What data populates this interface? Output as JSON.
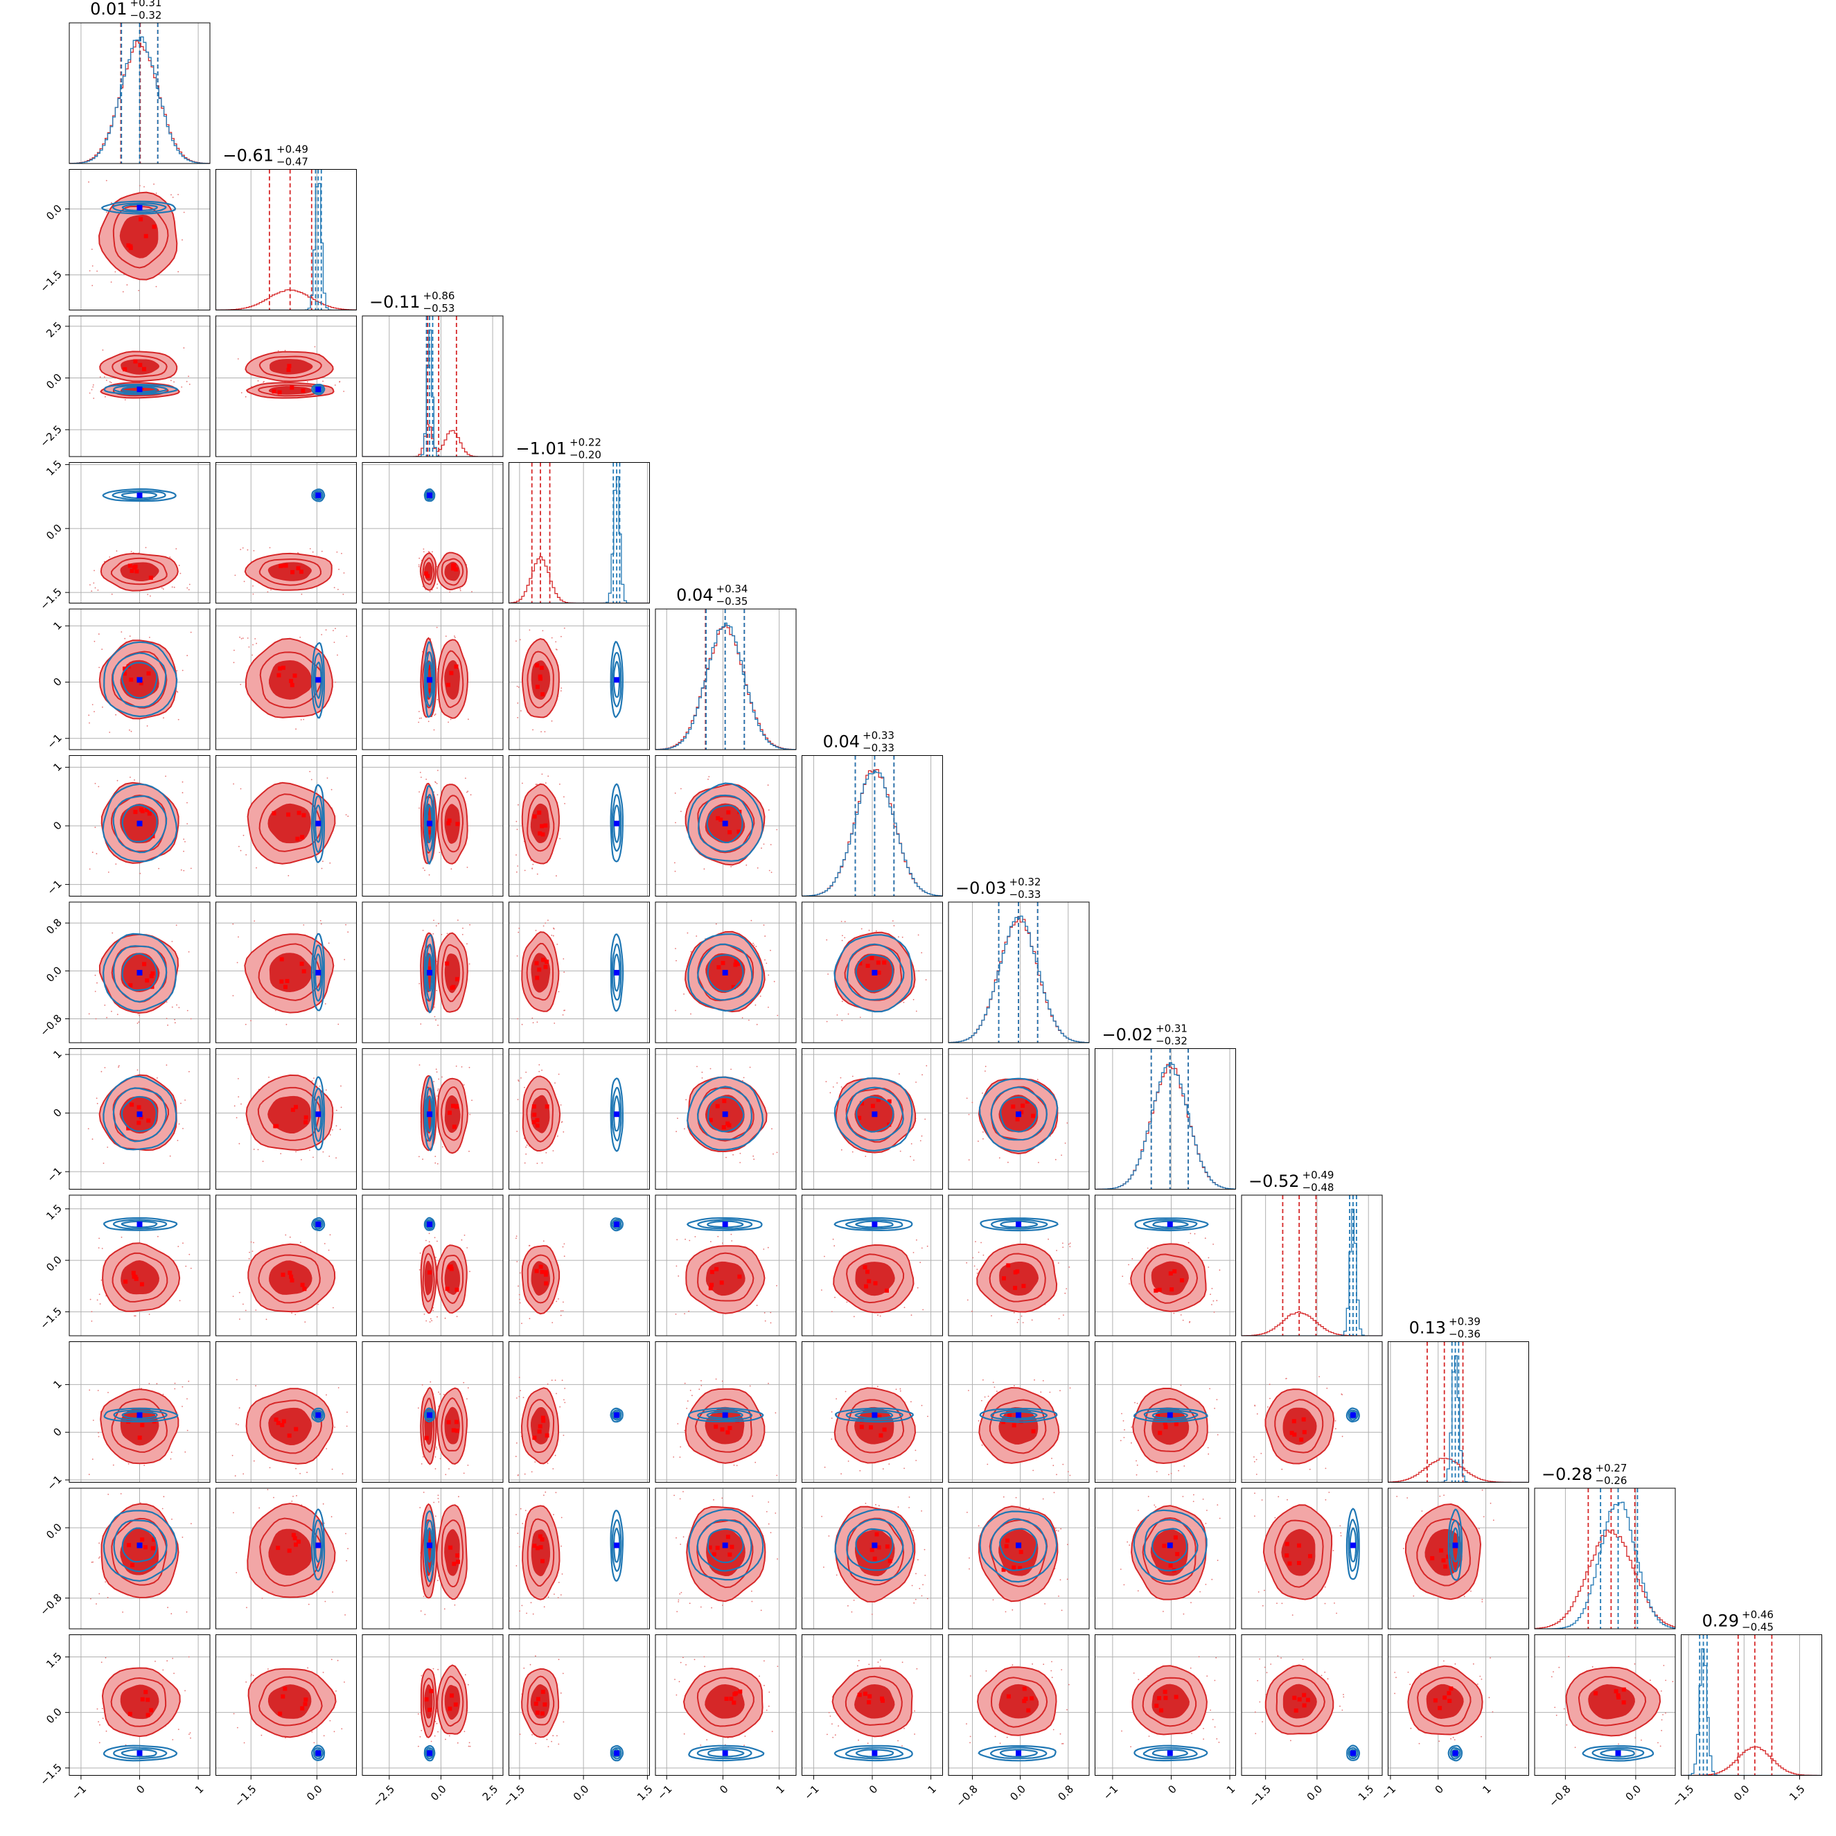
{
  "chart_data": {
    "type": "corner",
    "n_params": 12,
    "grid": true,
    "colors": {
      "red": "#d62728",
      "red_light": "#f2a6a6",
      "red_mid": "#e88b8b",
      "blue": "#1f77b4",
      "marker_blue": "#0000ff",
      "marker_red": "#ff0000"
    },
    "params": [
      {
        "title_median": "0.01",
        "title_plus": "+0.31",
        "title_minus": "−0.32",
        "range": [
          -1.2,
          1.2
        ],
        "ticks": [
          -1,
          0,
          1
        ],
        "tick_labels": [
          "−1",
          "0",
          "1"
        ],
        "red": {
          "modes": [
            [
              0.0,
              0.32,
              1
            ]
          ]
        },
        "blue": {
          "modes": [
            [
              0.0,
              0.31,
              1
            ]
          ]
        },
        "red_q": [
          -0.32,
          0.01,
          0.31
        ],
        "blue_q": [
          -0.31,
          0.0,
          0.31
        ]
      },
      {
        "title_median": "−0.61",
        "title_plus": "+0.49",
        "title_minus": "−0.47",
        "range": [
          -2.3,
          0.9
        ],
        "ticks": [
          -1.5,
          0.0
        ],
        "tick_labels": [
          "−1.5",
          "0.0"
        ],
        "red": {
          "modes": [
            [
              -0.61,
              0.48,
              1
            ]
          ]
        },
        "blue": {
          "modes": [
            [
              0.03,
              0.07,
              1
            ]
          ]
        },
        "red_q": [
          -1.08,
          -0.61,
          -0.12
        ],
        "blue_q": [
          -0.03,
          0.03,
          0.1
        ]
      },
      {
        "title_median": "−0.11",
        "title_plus": "+0.86",
        "title_minus": "−0.53",
        "range": [
          -3.8,
          3.0
        ],
        "ticks": [
          -2.5,
          0.0,
          2.5
        ],
        "tick_labels": [
          "−2.5",
          "0.0",
          "2.5"
        ],
        "red": {
          "modes": [
            [
              -0.6,
              0.18,
              0.55
            ],
            [
              0.55,
              0.35,
              0.45
            ]
          ]
        },
        "blue": {
          "modes": [
            [
              -0.55,
              0.12,
              1
            ]
          ]
        },
        "red_q": [
          -0.64,
          -0.11,
          0.75
        ],
        "blue_q": [
          -0.7,
          -0.55,
          -0.4
        ]
      },
      {
        "title_median": "−1.01",
        "title_plus": "+0.22",
        "title_minus": "−0.20",
        "range": [
          -1.75,
          1.55
        ],
        "ticks": [
          -1.5,
          0.0,
          1.5
        ],
        "tick_labels": [
          "−1.5",
          "0.0",
          "1.5"
        ],
        "red": {
          "modes": [
            [
              -1.01,
              0.21,
              1
            ]
          ]
        },
        "blue": {
          "modes": [
            [
              0.78,
              0.07,
              1
            ]
          ]
        },
        "red_q": [
          -1.21,
          -1.01,
          -0.79
        ],
        "blue_q": [
          0.7,
          0.78,
          0.85
        ]
      },
      {
        "title_median": "0.04",
        "title_plus": "+0.34",
        "title_minus": "−0.35",
        "range": [
          -1.2,
          1.3
        ],
        "ticks": [
          -1,
          0,
          1
        ],
        "tick_labels": [
          "−1",
          "0",
          "1"
        ],
        "red": {
          "modes": [
            [
              0.04,
              0.34,
              1
            ]
          ]
        },
        "blue": {
          "modes": [
            [
              0.04,
              0.33,
              1
            ]
          ]
        },
        "red_q": [
          -0.31,
          0.04,
          0.38
        ],
        "blue_q": [
          -0.3,
          0.04,
          0.38
        ]
      },
      {
        "title_median": "0.04",
        "title_plus": "+0.33",
        "title_minus": "−0.33",
        "range": [
          -1.2,
          1.2
        ],
        "ticks": [
          -1,
          0,
          1
        ],
        "tick_labels": [
          "−1",
          "0",
          "1"
        ],
        "red": {
          "modes": [
            [
              0.04,
              0.33,
              1
            ]
          ]
        },
        "blue": {
          "modes": [
            [
              0.04,
              0.33,
              1
            ]
          ]
        },
        "red_q": [
          -0.29,
          0.04,
          0.37
        ],
        "blue_q": [
          -0.29,
          0.04,
          0.37
        ]
      },
      {
        "title_median": "−0.03",
        "title_plus": "+0.32",
        "title_minus": "−0.33",
        "range": [
          -1.2,
          1.15
        ],
        "ticks": [
          -0.8,
          0.0,
          0.8
        ],
        "tick_labels": [
          "−0.8",
          "0.0",
          "0.8"
        ],
        "red": {
          "modes": [
            [
              -0.03,
              0.32,
              1
            ]
          ]
        },
        "blue": {
          "modes": [
            [
              -0.03,
              0.32,
              1
            ]
          ]
        },
        "red_q": [
          -0.36,
          -0.03,
          0.29
        ],
        "blue_q": [
          -0.36,
          -0.03,
          0.29
        ]
      },
      {
        "title_median": "−0.02",
        "title_plus": "+0.31",
        "title_minus": "−0.32",
        "range": [
          -1.3,
          1.1
        ],
        "ticks": [
          -1,
          0,
          1
        ],
        "tick_labels": [
          "−1",
          "0",
          "1"
        ],
        "red": {
          "modes": [
            [
              -0.02,
              0.31,
              1
            ]
          ]
        },
        "blue": {
          "modes": [
            [
              -0.02,
              0.31,
              1
            ]
          ]
        },
        "red_q": [
          -0.34,
          -0.02,
          0.29
        ],
        "blue_q": [
          -0.34,
          -0.02,
          0.29
        ]
      },
      {
        "title_median": "−0.52",
        "title_plus": "+0.49",
        "title_minus": "−0.48",
        "range": [
          -2.2,
          1.9
        ],
        "ticks": [
          -1.5,
          0.0,
          1.5
        ],
        "tick_labels": [
          "−1.5",
          "0.0",
          "1.5"
        ],
        "red": {
          "modes": [
            [
              -0.52,
              0.48,
              1
            ]
          ]
        },
        "blue": {
          "modes": [
            [
              1.05,
              0.09,
              1
            ]
          ]
        },
        "red_q": [
          -1.0,
          -0.52,
          -0.03
        ],
        "blue_q": [
          0.95,
          1.05,
          1.15
        ]
      },
      {
        "title_median": "0.13",
        "title_plus": "+0.39",
        "title_minus": "−0.36",
        "range": [
          -1.05,
          1.9
        ],
        "ticks": [
          -1,
          0,
          1
        ],
        "tick_labels": [
          "−1",
          "0",
          "1"
        ],
        "red": {
          "modes": [
            [
              0.13,
              0.38,
              1
            ]
          ]
        },
        "blue": {
          "modes": [
            [
              0.36,
              0.07,
              1
            ]
          ]
        },
        "red_q": [
          -0.23,
          0.13,
          0.52
        ],
        "blue_q": [
          0.29,
          0.36,
          0.43
        ]
      },
      {
        "title_median": "−0.28",
        "title_plus": "+0.27",
        "title_minus": "−0.26",
        "range": [
          -1.15,
          0.45
        ],
        "ticks": [
          -0.8,
          0.0
        ],
        "tick_labels": [
          "−0.8",
          "0.0"
        ],
        "red": {
          "modes": [
            [
              -0.28,
              0.26,
              1
            ]
          ]
        },
        "blue": {
          "modes": [
            [
              -0.2,
              0.2,
              1
            ]
          ]
        },
        "red_q": [
          -0.54,
          -0.28,
          -0.01
        ],
        "blue_q": [
          -0.4,
          -0.2,
          0.02
        ]
      },
      {
        "title_median": "0.29",
        "title_plus": "+0.46",
        "title_minus": "−0.45",
        "range": [
          -1.7,
          2.1
        ],
        "ticks": [
          -1.5,
          0.0,
          1.5
        ],
        "tick_labels": [
          "−1.5",
          "0.0",
          "1.5"
        ],
        "red": {
          "modes": [
            [
              0.29,
              0.45,
              1
            ]
          ]
        },
        "blue": {
          "modes": [
            [
              -1.1,
              0.1,
              1
            ]
          ]
        },
        "red_q": [
          -0.16,
          0.29,
          0.75
        ],
        "blue_q": [
          -1.2,
          -1.1,
          -1.0
        ]
      }
    ]
  }
}
